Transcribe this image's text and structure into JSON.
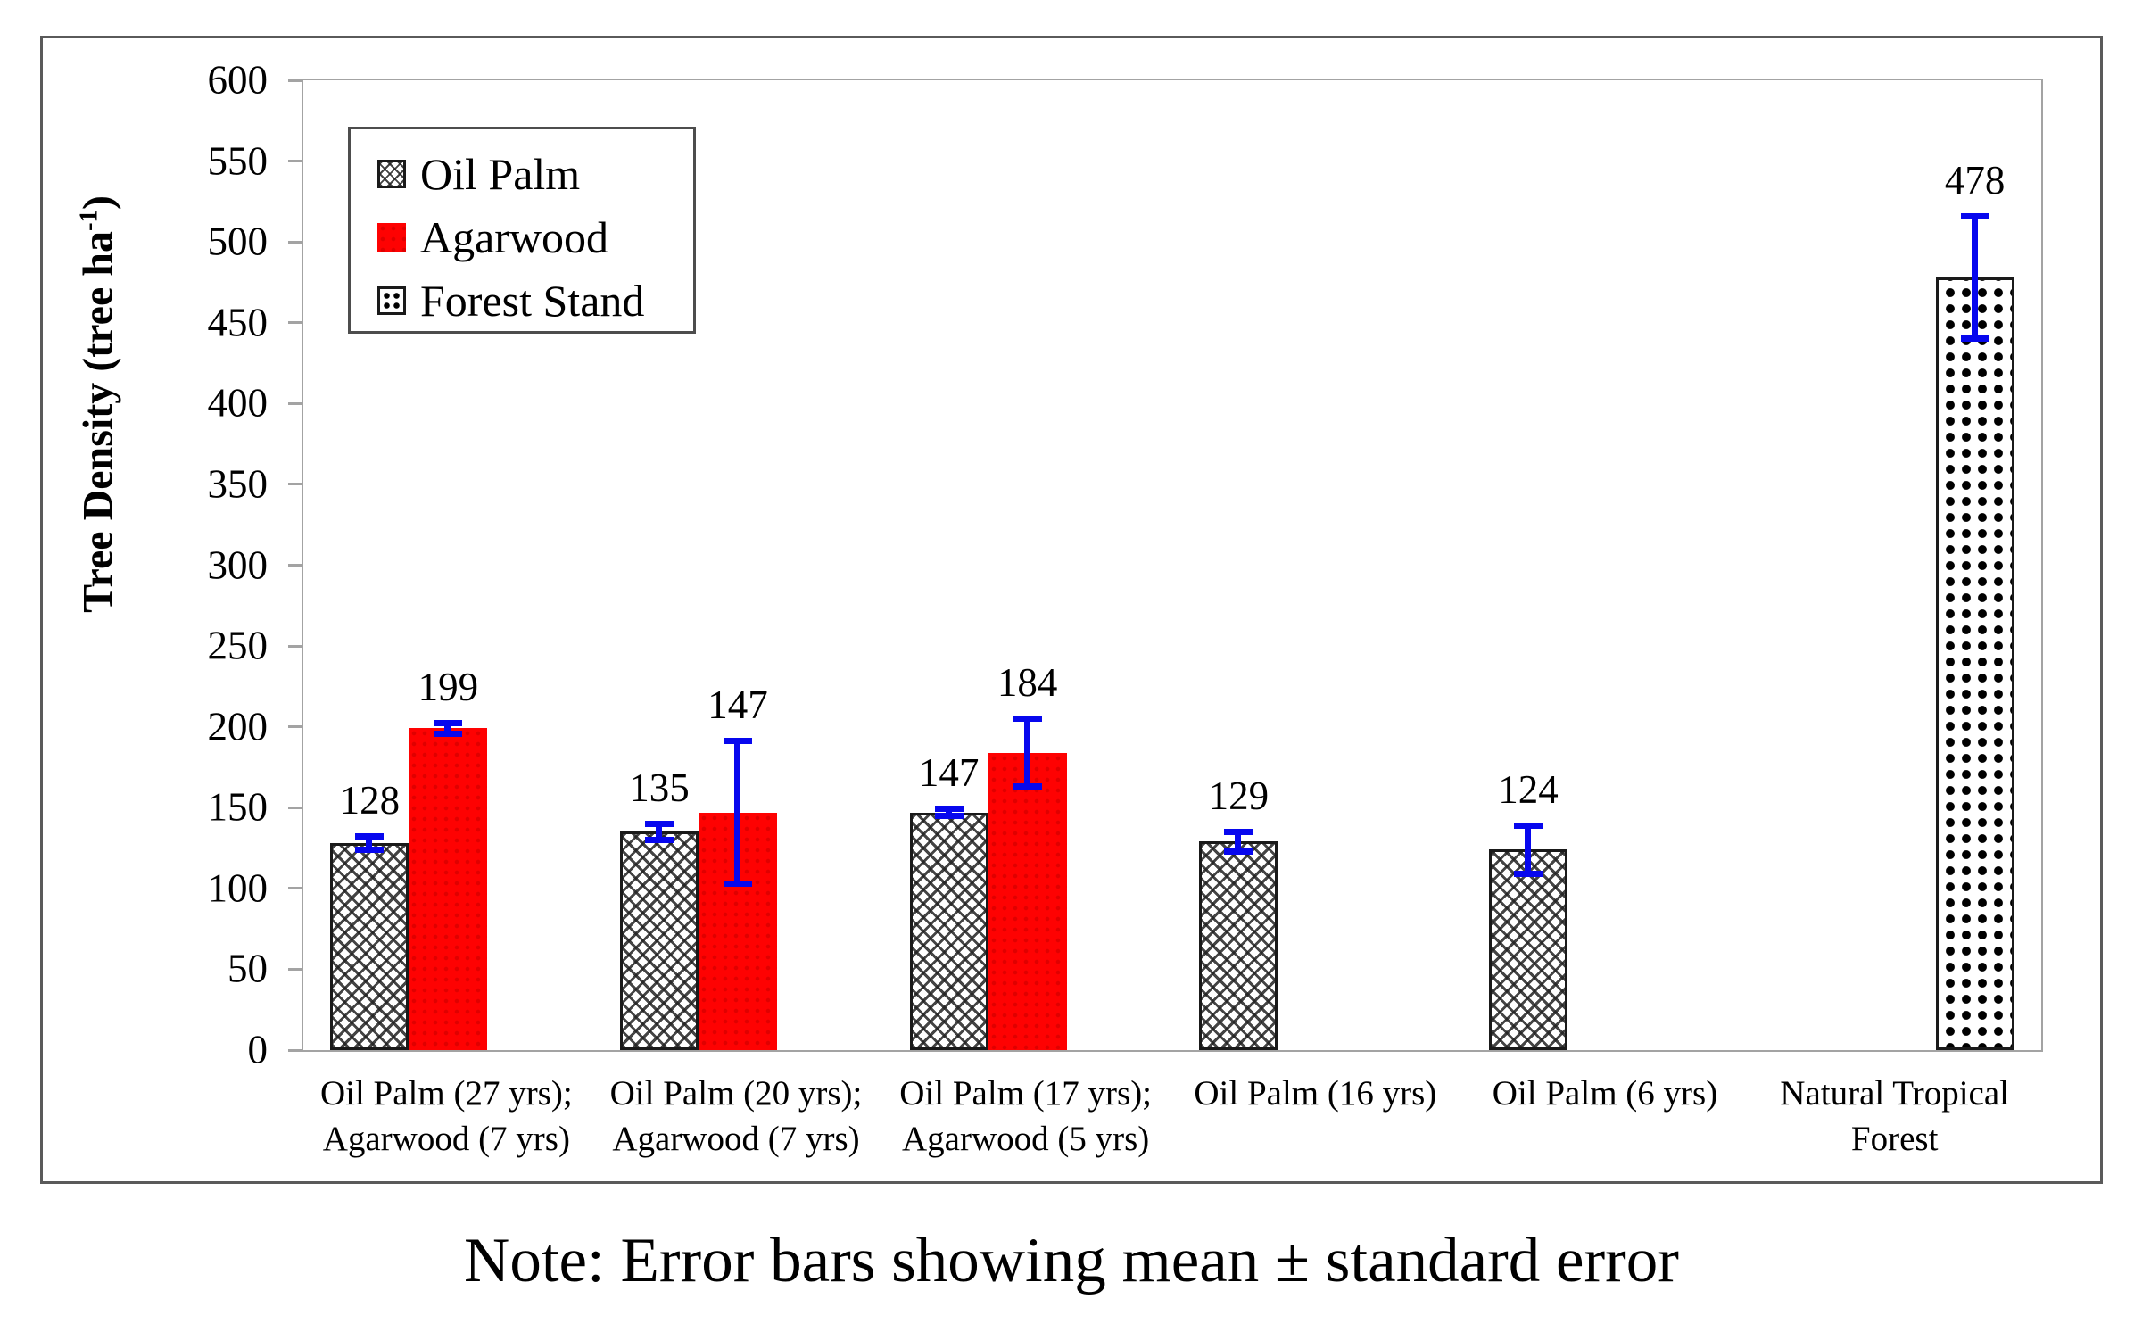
{
  "note": "Note: Error bars showing mean ± standard error",
  "colors": {
    "agarwood_red": "#fe0202",
    "error_bar_blue": "#0707ee",
    "bar_outline_black": "#1a1a1a",
    "axis_gray": "#a3a3a3",
    "figure_border_gray": "#5a5a5a",
    "text_black": "#000000"
  },
  "legend": {
    "items": [
      {
        "label": "Oil Palm",
        "pattern": "diagonal-crosshatch"
      },
      {
        "label": "Agarwood",
        "pattern": "solid-red-dotted"
      },
      {
        "label": "Forest Stand",
        "pattern": "black-dot-grid"
      }
    ]
  },
  "chart_data": {
    "type": "bar",
    "title": "",
    "xlabel": "",
    "ylabel": "Tree Density (tree ha⁻¹)",
    "ylabel_parts": {
      "main": "Tree Density (tree ha",
      "sup": "-1",
      "end": ")"
    },
    "ylim": [
      0,
      600
    ],
    "ytick_step": 50,
    "yticks": [
      600,
      550,
      500,
      450,
      400,
      350,
      300,
      250,
      200,
      150,
      100,
      50,
      0
    ],
    "grid": false,
    "legend_position": "upper-left-inside",
    "error_bars": "mean ± standard error",
    "series_names": [
      "Oil Palm",
      "Agarwood",
      "Forest Stand"
    ],
    "categories": [
      "Oil Palm (27 yrs); Agarwood (7 yrs)",
      "Oil Palm (20 yrs); Agarwood (7 yrs)",
      "Oil Palm (17 yrs); Agarwood (5 yrs)",
      "Oil Palm (16 yrs)",
      "Oil Palm (6 yrs)",
      "Natural Tropical Forest"
    ],
    "groups": [
      {
        "category_lines": [
          "Oil Palm (27 yrs);",
          "Agarwood (7 yrs)"
        ],
        "bars": [
          {
            "series": "Oil Palm",
            "value": 128,
            "error": 6
          },
          {
            "series": "Agarwood",
            "value": 199,
            "error": 5
          }
        ]
      },
      {
        "category_lines": [
          "Oil Palm (20 yrs);",
          "Agarwood (7 yrs)"
        ],
        "bars": [
          {
            "series": "Oil Palm",
            "value": 135,
            "error": 7
          },
          {
            "series": "Agarwood",
            "value": 147,
            "error": 46
          }
        ]
      },
      {
        "category_lines": [
          "Oil Palm (17 yrs);",
          "Agarwood (5 yrs)"
        ],
        "bars": [
          {
            "series": "Oil Palm",
            "value": 147,
            "error": 4
          },
          {
            "series": "Agarwood",
            "value": 184,
            "error": 23
          }
        ]
      },
      {
        "category_lines": [
          "Oil Palm (16 yrs)"
        ],
        "bars": [
          {
            "series": "Oil Palm",
            "value": 129,
            "error": 8
          }
        ]
      },
      {
        "category_lines": [
          "Oil Palm (6 yrs)"
        ],
        "bars": [
          {
            "series": "Oil Palm",
            "value": 124,
            "error": 17
          }
        ]
      },
      {
        "category_lines": [
          "Natural Tropical",
          "Forest"
        ],
        "bars": [
          {
            "series": "Forest Stand",
            "value": 478,
            "error": 40
          }
        ]
      }
    ]
  }
}
